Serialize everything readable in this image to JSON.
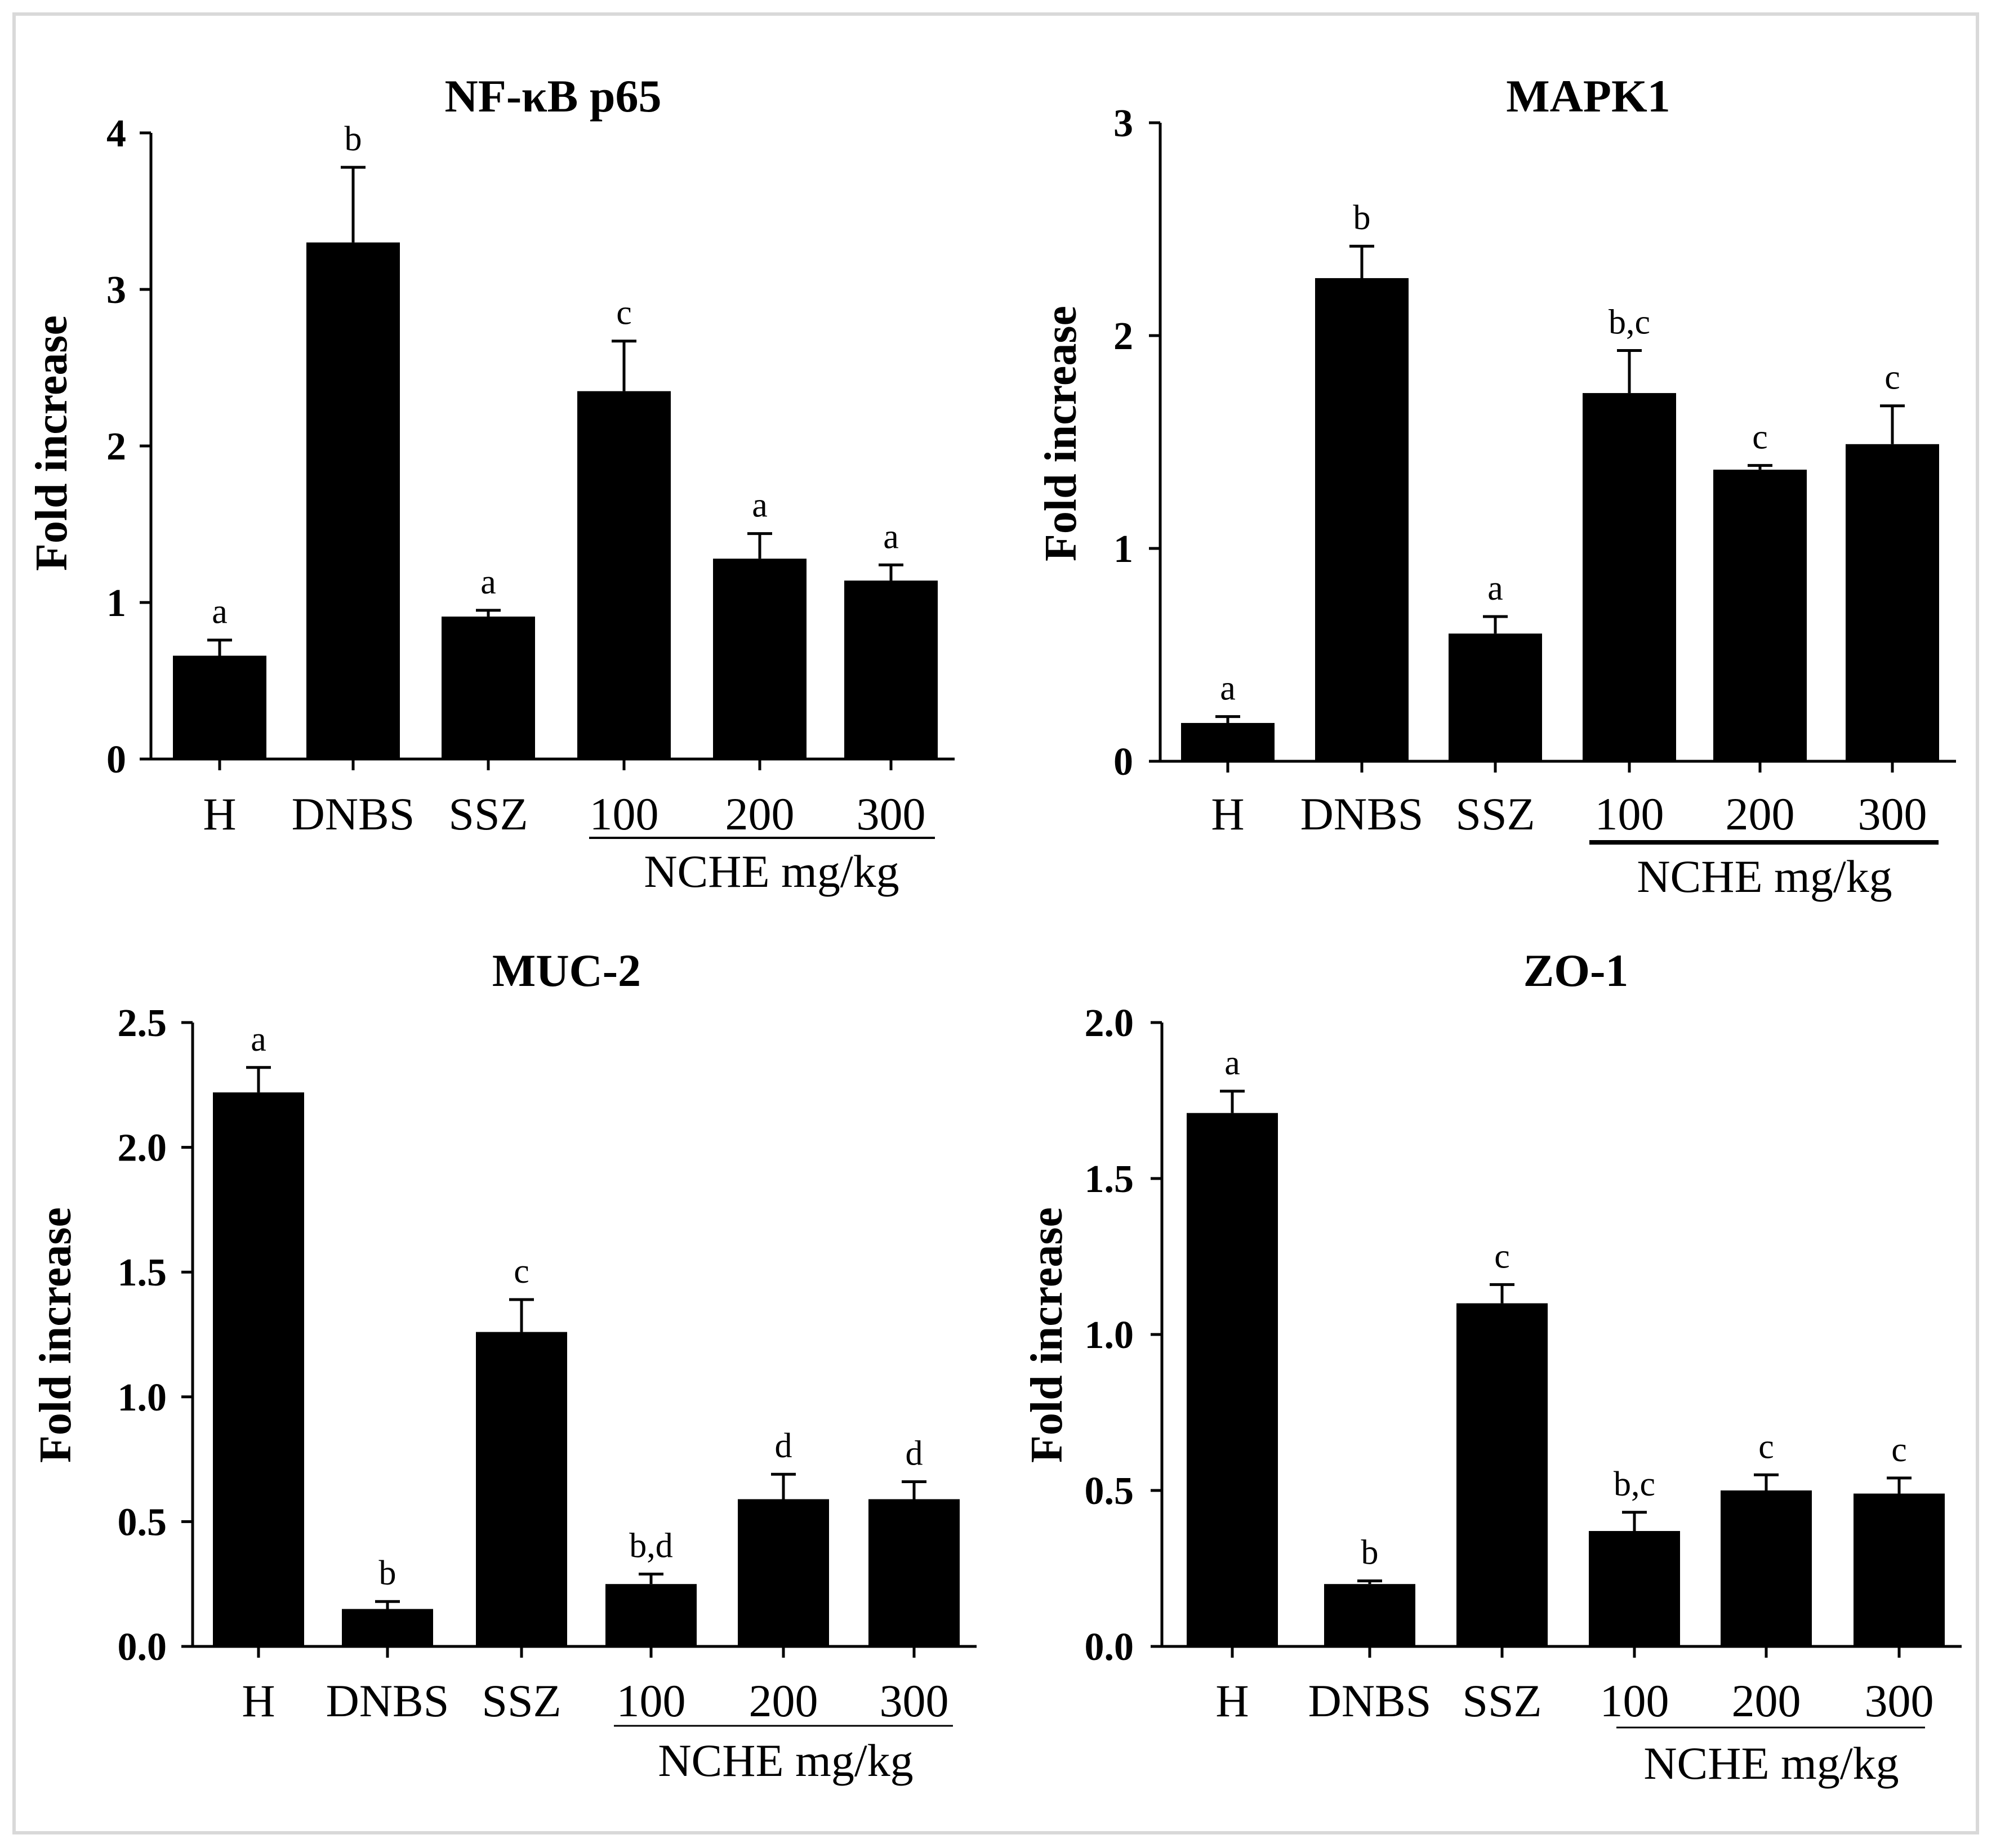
{
  "chart_data": [
    {
      "type": "bar",
      "title": "NF-κB p65",
      "ylabel": "Fold increase",
      "xlabel": "",
      "ylim": [
        0,
        4
      ],
      "yticks": [
        "0",
        "1",
        "2",
        "3",
        "4"
      ],
      "categories": [
        "H",
        "DNBS",
        "SSZ",
        "100",
        "200",
        "300"
      ],
      "group_label": "NCHE mg/kg",
      "values": [
        0.66,
        3.3,
        0.91,
        2.35,
        1.28,
        1.14
      ],
      "errors": [
        0.1,
        0.48,
        0.04,
        0.32,
        0.16,
        0.1
      ],
      "significance": [
        "a",
        "b",
        "a",
        "c",
        "a",
        "a"
      ]
    },
    {
      "type": "bar",
      "title": "MAPK1",
      "ylabel": "Fold increase",
      "xlabel": "",
      "ylim": [
        0,
        3
      ],
      "yticks": [
        "0",
        "1",
        "2",
        "3"
      ],
      "categories": [
        "H",
        "DNBS",
        "SSZ",
        "100",
        "200",
        "300"
      ],
      "group_label": "NCHE mg/kg",
      "values": [
        0.18,
        2.27,
        0.6,
        1.73,
        1.37,
        1.49
      ],
      "errors": [
        0.03,
        0.15,
        0.08,
        0.2,
        0.02,
        0.18
      ],
      "significance": [
        "a",
        "b",
        "a",
        "b,c",
        "c",
        "c"
      ]
    },
    {
      "type": "bar",
      "title": "MUC-2",
      "ylabel": "Fold increase",
      "xlabel": "",
      "ylim": [
        0,
        2.5
      ],
      "yticks": [
        "0.0",
        "0.5",
        "1.0",
        "1.5",
        "2.0",
        "2.5"
      ],
      "categories": [
        "H",
        "DNBS",
        "SSZ",
        "100",
        "200",
        "300"
      ],
      "group_label": "NCHE mg/kg",
      "values": [
        2.22,
        0.15,
        1.26,
        0.25,
        0.59,
        0.59
      ],
      "errors": [
        0.1,
        0.03,
        0.13,
        0.04,
        0.1,
        0.07
      ],
      "significance": [
        "a",
        "b",
        "c",
        "b,d",
        "d",
        "d"
      ]
    },
    {
      "type": "bar",
      "title": "ZO-1",
      "ylabel": "Fold increase",
      "xlabel": "",
      "ylim": [
        0,
        2.0
      ],
      "yticks": [
        "0.0",
        "0.5",
        "1.0",
        "1.5",
        "2.0"
      ],
      "categories": [
        "H",
        "DNBS",
        "SSZ",
        "100",
        "200",
        "300"
      ],
      "group_label": "NCHE mg/kg",
      "values": [
        1.71,
        0.2,
        1.1,
        0.37,
        0.5,
        0.49
      ],
      "errors": [
        0.07,
        0.01,
        0.06,
        0.06,
        0.05,
        0.05
      ],
      "significance": [
        "a",
        "b",
        "c",
        "b,c",
        "c",
        "c"
      ]
    }
  ],
  "colors": {
    "bar": "#000000",
    "axis": "#000000",
    "frame": "#d9d9d9"
  }
}
